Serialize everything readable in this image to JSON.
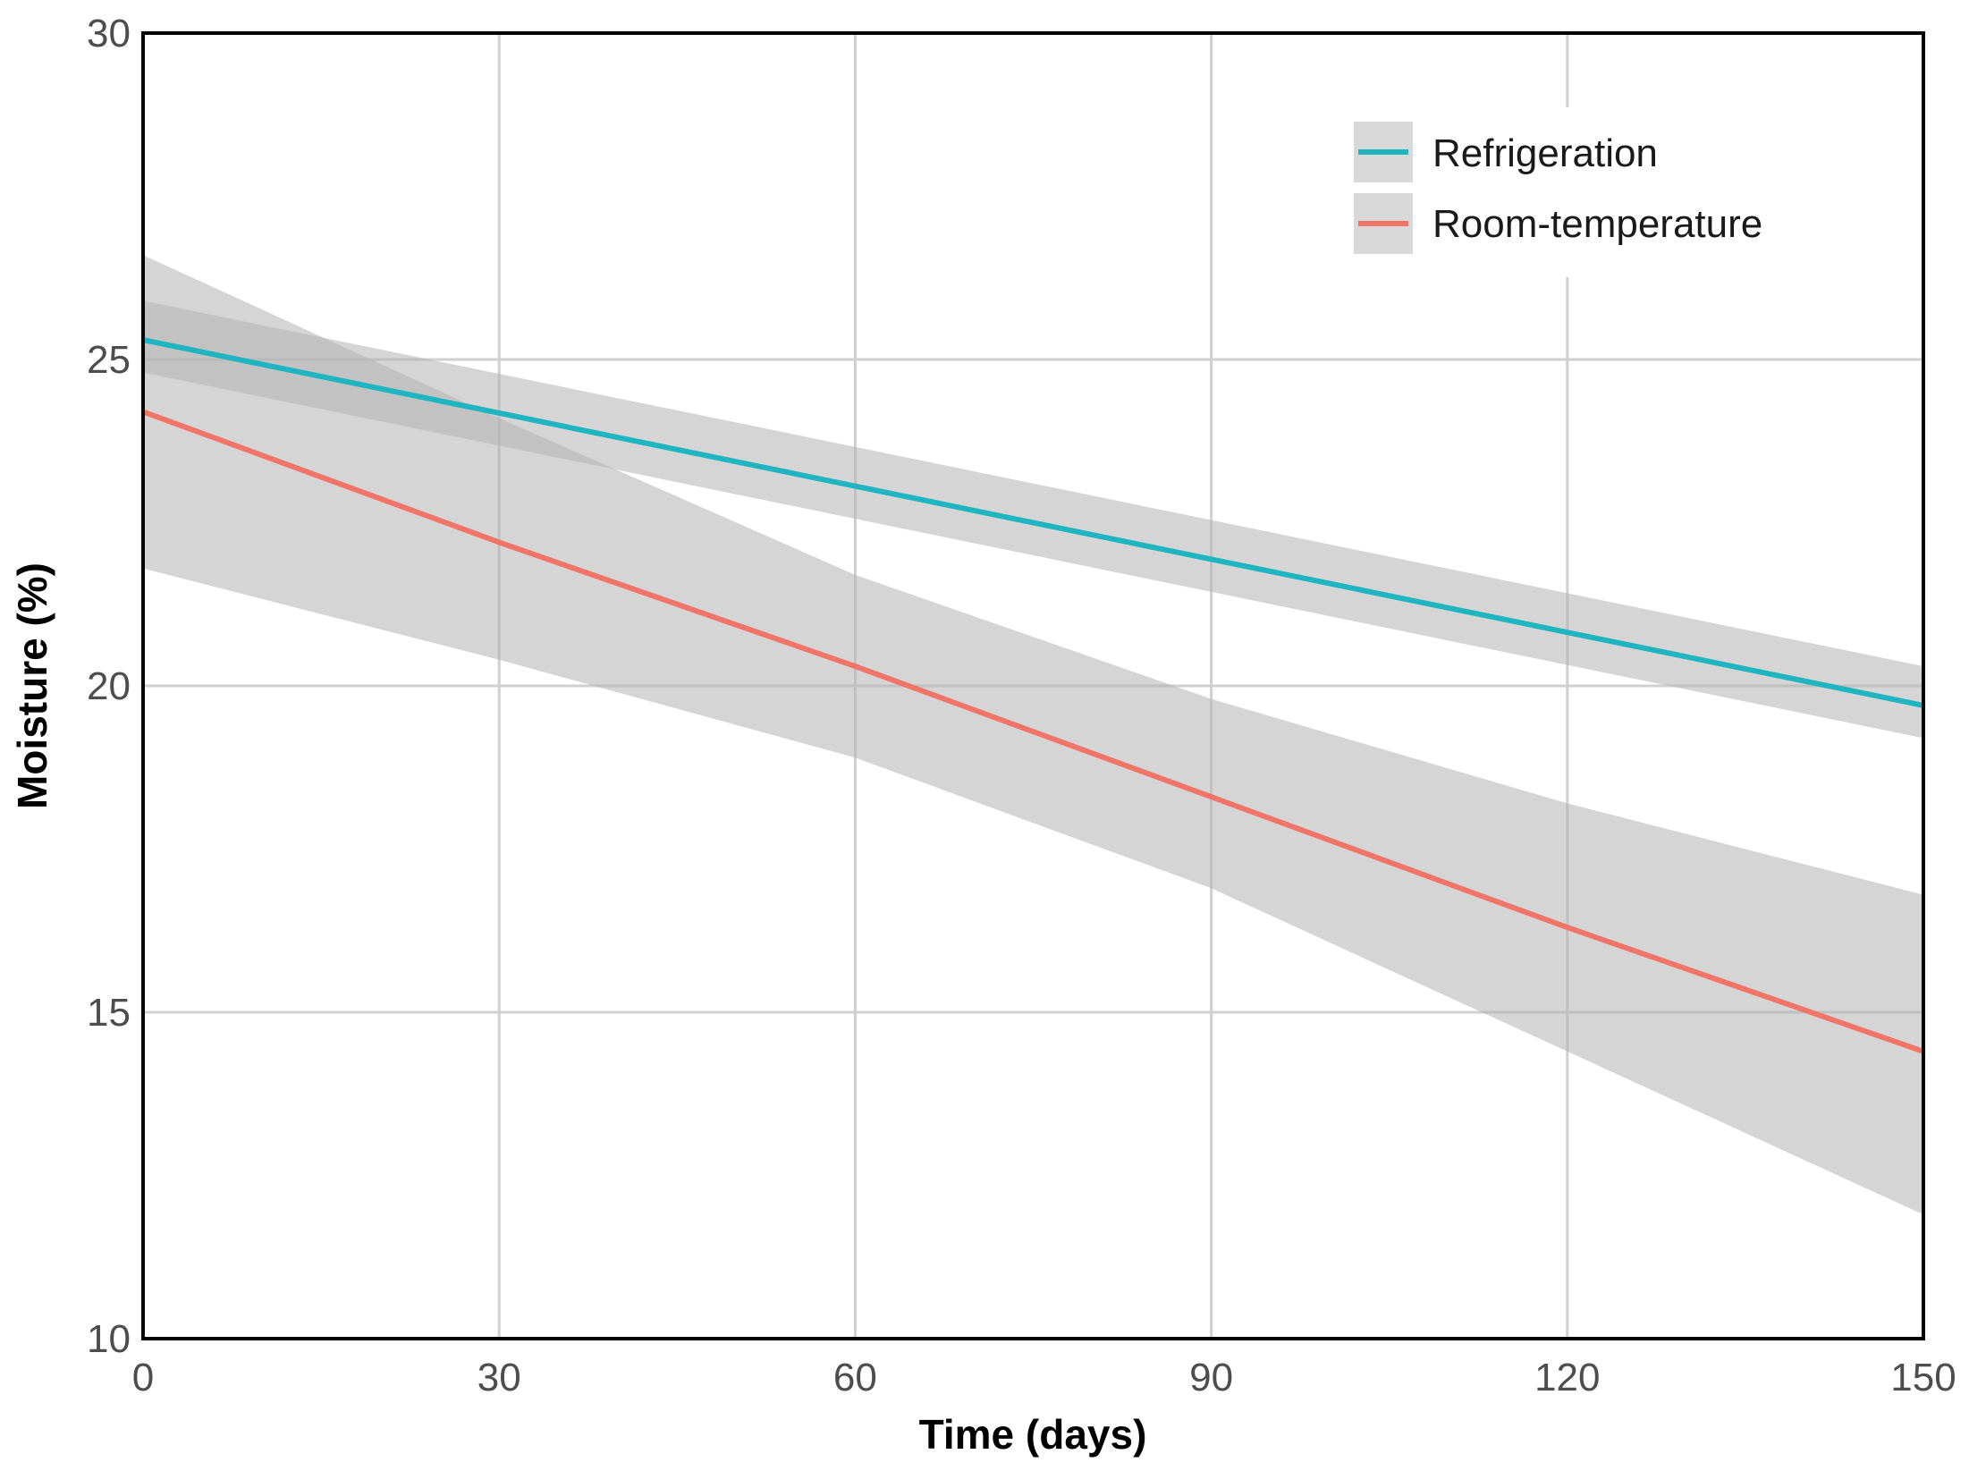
{
  "chart_data": {
    "type": "line",
    "title": "",
    "xlabel": "Time (days)",
    "ylabel": "Moisture (%)",
    "xlim": [
      0,
      150
    ],
    "ylim": [
      10,
      30
    ],
    "xticks": [
      0,
      30,
      60,
      90,
      120,
      150
    ],
    "yticks": [
      10,
      15,
      20,
      25,
      30
    ],
    "xtick_labels": [
      "0",
      "30",
      "60",
      "90",
      "120",
      "150"
    ],
    "ytick_labels": [
      "10",
      "15",
      "20",
      "25",
      "30"
    ],
    "grid": true,
    "legend_position": "top-right",
    "colors": {
      "band": "#b3b3b3",
      "grid": "#d0d0d0",
      "axis": "#000000"
    },
    "series": [
      {
        "name": "Refrigeration",
        "color": "#1fb5c0",
        "x": [
          0,
          150
        ],
        "y": [
          25.3,
          19.7
        ],
        "ci_lower": [
          24.8,
          19.2
        ],
        "ci_upper": [
          25.9,
          20.3
        ]
      },
      {
        "name": "Room-temperature",
        "color": "#f07468",
        "x": [
          0,
          30,
          60,
          90,
          120,
          150
        ],
        "y": [
          24.2,
          22.2,
          20.3,
          18.3,
          16.3,
          14.4
        ],
        "ci_lower": [
          21.8,
          20.4,
          18.9,
          16.9,
          14.4,
          11.9
        ],
        "ci_upper": [
          26.6,
          24.1,
          21.7,
          19.8,
          18.2,
          16.8
        ]
      }
    ]
  }
}
